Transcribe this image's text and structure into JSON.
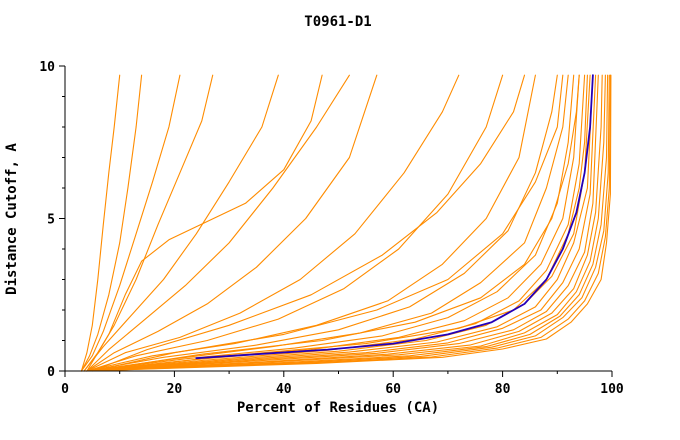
{
  "chart_data": {
    "type": "line",
    "title": "T0961-D1",
    "xlabel": "Percent of Residues (CA)",
    "ylabel": "Distance Cutoff, A",
    "xlim": [
      0,
      100
    ],
    "ylim": [
      0,
      10
    ],
    "xticks": [
      0,
      20,
      40,
      60,
      80,
      100
    ],
    "xticks_minor": [
      10,
      30,
      50,
      70,
      90
    ],
    "yticks": [
      0,
      5,
      10
    ],
    "yticks_minor": [
      1,
      2,
      3,
      4,
      6,
      7,
      8,
      9
    ],
    "grid": false,
    "legend": "none",
    "colors": {
      "model": "#ff8c00",
      "reference": "#2400b8",
      "axis": "#000000"
    },
    "series": [
      {
        "role": "model",
        "points": [
          [
            3,
            0
          ],
          [
            4,
            0.6
          ],
          [
            5,
            1.5
          ],
          [
            6,
            3
          ],
          [
            7,
            4.8
          ],
          [
            8,
            6.5
          ],
          [
            9,
            8
          ],
          [
            10,
            9.7
          ]
        ]
      },
      {
        "role": "model",
        "points": [
          [
            3,
            0
          ],
          [
            4.5,
            0.5
          ],
          [
            6,
            1.2
          ],
          [
            8,
            2.5
          ],
          [
            10,
            4.2
          ],
          [
            11.5,
            6
          ],
          [
            13,
            8
          ],
          [
            14,
            9.7
          ]
        ]
      },
      {
        "role": "model",
        "points": [
          [
            3,
            0
          ],
          [
            5,
            0.5
          ],
          [
            7,
            1.3
          ],
          [
            10,
            2.8
          ],
          [
            13,
            4.5
          ],
          [
            16,
            6.2
          ],
          [
            19,
            8
          ],
          [
            21,
            9.7
          ]
        ]
      },
      {
        "role": "model",
        "points": [
          [
            3.5,
            0
          ],
          [
            6,
            0.6
          ],
          [
            9,
            1.5
          ],
          [
            13,
            3
          ],
          [
            17,
            4.8
          ],
          [
            21,
            6.5
          ],
          [
            25,
            8.2
          ],
          [
            27,
            9.7
          ]
        ]
      },
      {
        "role": "model",
        "points": [
          [
            3.5,
            0
          ],
          [
            7,
            0.8
          ],
          [
            12,
            1.8
          ],
          [
            18,
            3
          ],
          [
            24,
            4.5
          ],
          [
            30,
            6.2
          ],
          [
            36,
            8
          ],
          [
            39,
            9.7
          ]
        ]
      },
      {
        "role": "model",
        "points": [
          [
            4,
            0
          ],
          [
            8,
            0.7
          ],
          [
            14,
            1.6
          ],
          [
            22,
            2.8
          ],
          [
            30,
            4.2
          ],
          [
            38,
            6
          ],
          [
            46,
            8
          ],
          [
            52,
            9.7
          ]
        ]
      },
      {
        "role": "model",
        "points": [
          [
            4,
            0
          ],
          [
            8,
            1.2
          ],
          [
            11,
            2.5
          ],
          [
            14,
            3.6
          ],
          [
            19,
            4.3
          ],
          [
            26,
            4.9
          ],
          [
            33,
            5.5
          ],
          [
            40,
            6.6
          ],
          [
            45,
            8.2
          ],
          [
            47,
            9.7
          ]
        ]
      },
      {
        "role": "model",
        "points": [
          [
            4,
            0
          ],
          [
            9,
            0.6
          ],
          [
            17,
            1.3
          ],
          [
            26,
            2.2
          ],
          [
            35,
            3.4
          ],
          [
            44,
            5
          ],
          [
            52,
            7
          ],
          [
            57,
            9.7
          ]
        ]
      },
      {
        "role": "model",
        "points": [
          [
            4,
            0
          ],
          [
            11,
            0.6
          ],
          [
            21,
            1.1
          ],
          [
            32,
            1.9
          ],
          [
            43,
            3
          ],
          [
            53,
            4.5
          ],
          [
            62,
            6.5
          ],
          [
            69,
            8.5
          ],
          [
            72,
            9.7
          ]
        ]
      },
      {
        "role": "model",
        "points": [
          [
            4,
            0
          ],
          [
            13,
            0.5
          ],
          [
            26,
            1
          ],
          [
            39,
            1.7
          ],
          [
            51,
            2.7
          ],
          [
            61,
            4
          ],
          [
            70,
            5.8
          ],
          [
            77,
            8
          ],
          [
            80,
            9.7
          ]
        ]
      },
      {
        "role": "model",
        "points": [
          [
            4,
            0
          ],
          [
            16,
            0.5
          ],
          [
            31,
            0.9
          ],
          [
            46,
            1.5
          ],
          [
            59,
            2.3
          ],
          [
            69,
            3.5
          ],
          [
            77,
            5
          ],
          [
            83,
            7
          ],
          [
            86,
            9.7
          ]
        ]
      },
      {
        "role": "model",
        "points": [
          [
            5,
            0
          ],
          [
            15,
            0.7
          ],
          [
            30,
            1.5
          ],
          [
            45,
            2.5
          ],
          [
            58,
            3.8
          ],
          [
            68,
            5.2
          ],
          [
            76,
            6.8
          ],
          [
            82,
            8.5
          ],
          [
            84,
            9.7
          ]
        ]
      },
      {
        "role": "model",
        "points": [
          [
            5,
            0
          ],
          [
            20,
            0.6
          ],
          [
            40,
            1.2
          ],
          [
            57,
            2
          ],
          [
            70,
            3
          ],
          [
            80,
            4.5
          ],
          [
            86,
            6.2
          ],
          [
            90,
            8
          ],
          [
            91,
            9.7
          ]
        ]
      },
      {
        "role": "model",
        "points": [
          [
            5,
            0
          ],
          [
            25,
            0.55
          ],
          [
            47,
            1
          ],
          [
            64,
            1.6
          ],
          [
            76,
            2.4
          ],
          [
            84,
            3.5
          ],
          [
            89,
            5
          ],
          [
            92,
            6.8
          ],
          [
            93.5,
            8.5
          ],
          [
            94,
            9.7
          ]
        ]
      },
      {
        "role": "model",
        "points": [
          [
            5,
            0
          ],
          [
            30,
            0.5
          ],
          [
            55,
            0.9
          ],
          [
            72,
            1.4
          ],
          [
            82,
            2
          ],
          [
            88,
            3
          ],
          [
            92,
            4.5
          ],
          [
            94,
            6
          ],
          [
            95,
            7.5
          ],
          [
            95.5,
            9.7
          ]
        ]
      },
      {
        "role": "model",
        "points": [
          [
            4,
            0
          ],
          [
            18,
            0.45
          ],
          [
            35,
            0.85
          ],
          [
            50,
            1.35
          ],
          [
            63,
            2.1
          ],
          [
            73,
            3.2
          ],
          [
            81,
            4.6
          ],
          [
            86,
            6.5
          ],
          [
            89,
            8.5
          ],
          [
            90,
            9.7
          ]
        ]
      },
      {
        "role": "model",
        "points": [
          [
            4,
            0
          ],
          [
            20,
            0.4
          ],
          [
            38,
            0.8
          ],
          [
            54,
            1.25
          ],
          [
            67,
            1.9
          ],
          [
            76,
            2.9
          ],
          [
            84,
            4.2
          ],
          [
            88,
            6
          ],
          [
            91,
            8
          ],
          [
            92,
            9.7
          ]
        ]
      },
      {
        "role": "model",
        "points": [
          [
            4,
            0
          ],
          [
            22,
            0.4
          ],
          [
            42,
            0.75
          ],
          [
            58,
            1.15
          ],
          [
            70,
            1.75
          ],
          [
            79,
            2.6
          ],
          [
            86,
            3.8
          ],
          [
            90,
            5.5
          ],
          [
            92,
            7.5
          ],
          [
            93,
            9.7
          ]
        ]
      },
      {
        "role": "model",
        "points": [
          [
            4,
            0
          ],
          [
            24,
            0.38
          ],
          [
            45,
            0.7
          ],
          [
            61,
            1.1
          ],
          [
            73,
            1.65
          ],
          [
            81,
            2.4
          ],
          [
            87,
            3.5
          ],
          [
            91,
            5
          ],
          [
            93,
            7
          ],
          [
            94,
            9.7
          ]
        ]
      },
      {
        "role": "model",
        "points": [
          [
            4,
            0
          ],
          [
            26,
            0.36
          ],
          [
            48,
            0.68
          ],
          [
            64,
            1.05
          ],
          [
            75,
            1.55
          ],
          [
            83,
            2.3
          ],
          [
            88,
            3.3
          ],
          [
            92,
            4.8
          ],
          [
            94,
            6.8
          ],
          [
            95,
            9.7
          ]
        ]
      },
      {
        "role": "model",
        "points": [
          [
            4,
            0
          ],
          [
            28,
            0.35
          ],
          [
            50,
            0.65
          ],
          [
            66,
            1
          ],
          [
            77,
            1.5
          ],
          [
            84,
            2.2
          ],
          [
            89,
            3.1
          ],
          [
            93,
            4.5
          ],
          [
            95,
            6.5
          ],
          [
            96,
            9.7
          ]
        ]
      },
      {
        "role": "model",
        "points": [
          [
            4,
            0
          ],
          [
            30,
            0.34
          ],
          [
            52,
            0.62
          ],
          [
            68,
            0.95
          ],
          [
            79,
            1.45
          ],
          [
            86,
            2.1
          ],
          [
            90,
            3
          ],
          [
            93,
            4.2
          ],
          [
            95.5,
            6
          ],
          [
            96.5,
            9.7
          ]
        ]
      },
      {
        "role": "model",
        "points": [
          [
            4,
            0
          ],
          [
            32,
            0.33
          ],
          [
            55,
            0.6
          ],
          [
            70,
            0.92
          ],
          [
            80,
            1.4
          ],
          [
            87,
            2
          ],
          [
            91,
            2.9
          ],
          [
            94,
            4
          ],
          [
            96,
            5.8
          ],
          [
            97,
            9.7
          ]
        ]
      },
      {
        "role": "model",
        "points": [
          [
            4,
            0
          ],
          [
            34,
            0.32
          ],
          [
            57,
            0.58
          ],
          [
            72,
            0.9
          ],
          [
            82,
            1.35
          ],
          [
            88,
            1.95
          ],
          [
            92,
            2.8
          ],
          [
            95,
            3.9
          ],
          [
            96.5,
            5.5
          ],
          [
            97.5,
            9.7
          ]
        ]
      },
      {
        "role": "model",
        "points": [
          [
            4,
            0
          ],
          [
            36,
            0.3
          ],
          [
            59,
            0.55
          ],
          [
            74,
            0.85
          ],
          [
            83,
            1.3
          ],
          [
            89,
            1.9
          ],
          [
            93,
            2.7
          ],
          [
            95.5,
            3.8
          ],
          [
            97,
            5.2
          ],
          [
            98,
            8
          ],
          [
            98.2,
            9.7
          ]
        ]
      },
      {
        "role": "model",
        "points": [
          [
            4,
            0
          ],
          [
            38,
            0.3
          ],
          [
            61,
            0.53
          ],
          [
            76,
            0.82
          ],
          [
            84,
            1.25
          ],
          [
            90,
            1.85
          ],
          [
            93.5,
            2.6
          ],
          [
            96,
            3.6
          ],
          [
            97.5,
            5
          ],
          [
            98.5,
            7.5
          ],
          [
            98.8,
            9.7
          ]
        ]
      },
      {
        "role": "model",
        "points": [
          [
            4,
            0
          ],
          [
            40,
            0.28
          ],
          [
            63,
            0.5
          ],
          [
            77,
            0.8
          ],
          [
            85,
            1.2
          ],
          [
            90.5,
            1.8
          ],
          [
            94,
            2.5
          ],
          [
            96.5,
            3.5
          ],
          [
            98,
            4.8
          ],
          [
            99,
            7
          ],
          [
            99.2,
            9.7
          ]
        ]
      },
      {
        "role": "model",
        "points": [
          [
            4,
            0
          ],
          [
            42,
            0.27
          ],
          [
            65,
            0.48
          ],
          [
            78,
            0.78
          ],
          [
            86,
            1.15
          ],
          [
            91,
            1.75
          ],
          [
            94.5,
            2.4
          ],
          [
            97,
            3.4
          ],
          [
            98.5,
            4.6
          ],
          [
            99.3,
            6.5
          ],
          [
            99.5,
            9.7
          ]
        ]
      },
      {
        "role": "model",
        "points": [
          [
            4,
            0
          ],
          [
            44,
            0.26
          ],
          [
            67,
            0.46
          ],
          [
            79,
            0.75
          ],
          [
            87,
            1.1
          ],
          [
            92,
            1.7
          ],
          [
            95,
            2.3
          ],
          [
            97.5,
            3.2
          ],
          [
            98.8,
            4.4
          ],
          [
            99.5,
            6
          ],
          [
            99.7,
            9.7
          ]
        ]
      },
      {
        "role": "model",
        "points": [
          [
            4,
            0
          ],
          [
            46,
            0.25
          ],
          [
            69,
            0.45
          ],
          [
            80,
            0.72
          ],
          [
            88,
            1.05
          ],
          [
            92.5,
            1.6
          ],
          [
            95.5,
            2.2
          ],
          [
            98,
            3
          ],
          [
            99,
            4.2
          ],
          [
            99.7,
            5.8
          ],
          [
            99.8,
            9.7
          ]
        ]
      },
      {
        "role": "reference",
        "points": [
          [
            24,
            0.42
          ],
          [
            35,
            0.55
          ],
          [
            48,
            0.7
          ],
          [
            60,
            0.9
          ],
          [
            70,
            1.2
          ],
          [
            78,
            1.6
          ],
          [
            84,
            2.2
          ],
          [
            88,
            3
          ],
          [
            91,
            4
          ],
          [
            93.5,
            5.2
          ],
          [
            95,
            6.5
          ],
          [
            96,
            8
          ],
          [
            96.5,
            9.7
          ]
        ]
      }
    ]
  }
}
